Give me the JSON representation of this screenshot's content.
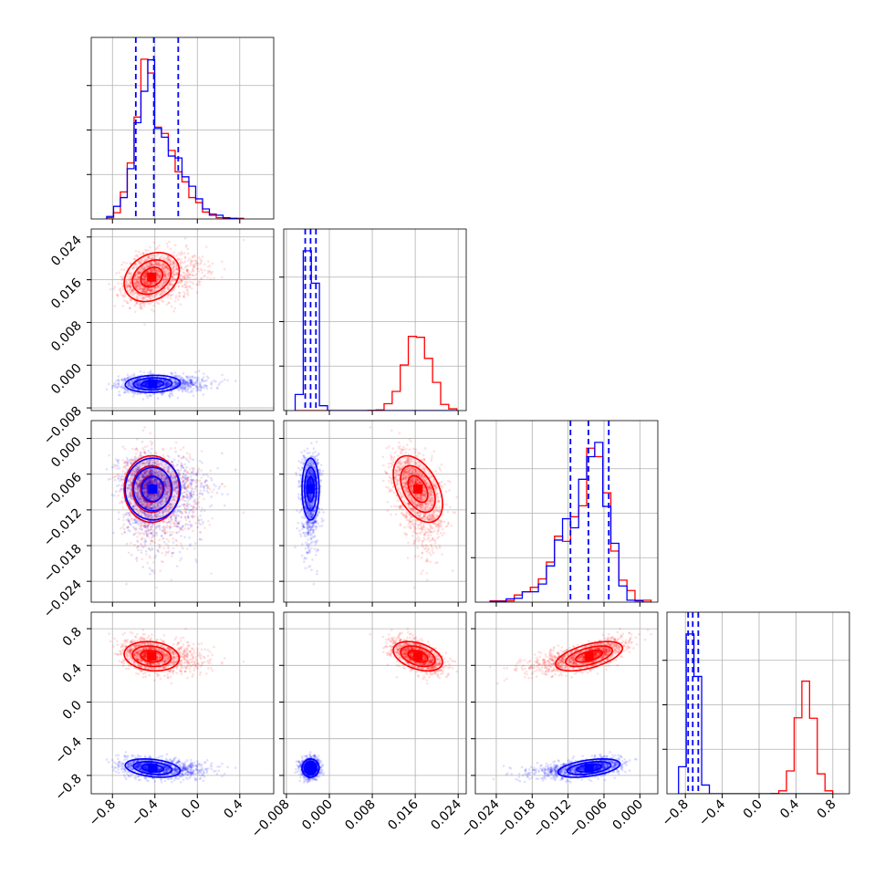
{
  "chart_data": {
    "type": "corner",
    "parameters": 4,
    "series_colors": {
      "red": "#ff0000",
      "blue": "#0000ff"
    },
    "grid": true,
    "axes": [
      {
        "range": [
          -1.0,
          0.72
        ],
        "ticks": [
          -0.8,
          -0.4,
          0.0,
          0.4
        ],
        "tick_labels": [
          "−0.8",
          "−0.4",
          "0.0",
          "0.4"
        ],
        "show_label_on": [
          "x"
        ]
      },
      {
        "range": [
          -0.0085,
          0.0255
        ],
        "ticks": [
          -0.008,
          0.0,
          0.008,
          0.016,
          0.024
        ],
        "tick_labels": [
          "−0.008",
          "0.000",
          "0.008",
          "0.016",
          "0.024"
        ],
        "show_label_on": [
          "x",
          "y"
        ]
      },
      {
        "range": [
          -0.0275,
          0.003
        ],
        "ticks": [
          -0.024,
          -0.018,
          -0.012,
          -0.006,
          0.0
        ],
        "tick_labels": [
          "−0.024",
          "−0.018",
          "−0.012",
          "−0.006",
          "0.000"
        ],
        "show_label_on": [
          "x",
          "y"
        ]
      },
      {
        "range": [
          -1.0,
          0.98
        ],
        "ticks": [
          -0.8,
          -0.4,
          0.0,
          0.4,
          0.8
        ],
        "tick_labels": [
          "−0.8",
          "−0.4",
          "0.0",
          "0.4",
          "0.8"
        ],
        "show_label_on": [
          "x",
          "y"
        ]
      }
    ],
    "series": [
      {
        "color": "#ff0000",
        "mean": [
          -0.43,
          0.0165,
          -0.0085,
          0.5
        ],
        "std": [
          0.13,
          0.0023,
          0.0028,
          0.08
        ],
        "skew": [
          1.2,
          0,
          -1.0,
          0
        ],
        "correlations": {
          "0-1": 0.25,
          "0-2": 0.0,
          "1-2": -0.45,
          "0-3": -0.15,
          "1-3": -0.4,
          "2-3": 0.55
        }
      },
      {
        "color": "#0000ff",
        "mean": [
          -0.42,
          -0.0035,
          -0.0085,
          -0.72
        ],
        "std": [
          0.13,
          0.0008,
          0.0026,
          0.05
        ],
        "skew": [
          1.2,
          0,
          -1.0,
          0
        ],
        "correlations": {
          "0-1": 0.1,
          "0-2": 0.0,
          "1-2": 0.0,
          "0-3": -0.3,
          "1-3": 0.0,
          "2-3": 0.45
        }
      }
    ],
    "histogram_bins": 20,
    "quantile_lines": {
      "color": "#0000ff",
      "values": [
        [
          -0.58,
          -0.41,
          -0.18
        ],
        [
          -0.0045,
          -0.0035,
          -0.0025
        ],
        [
          -0.0116,
          -0.0086,
          -0.0052
        ],
        [
          -0.77,
          -0.72,
          -0.66
        ]
      ]
    }
  }
}
